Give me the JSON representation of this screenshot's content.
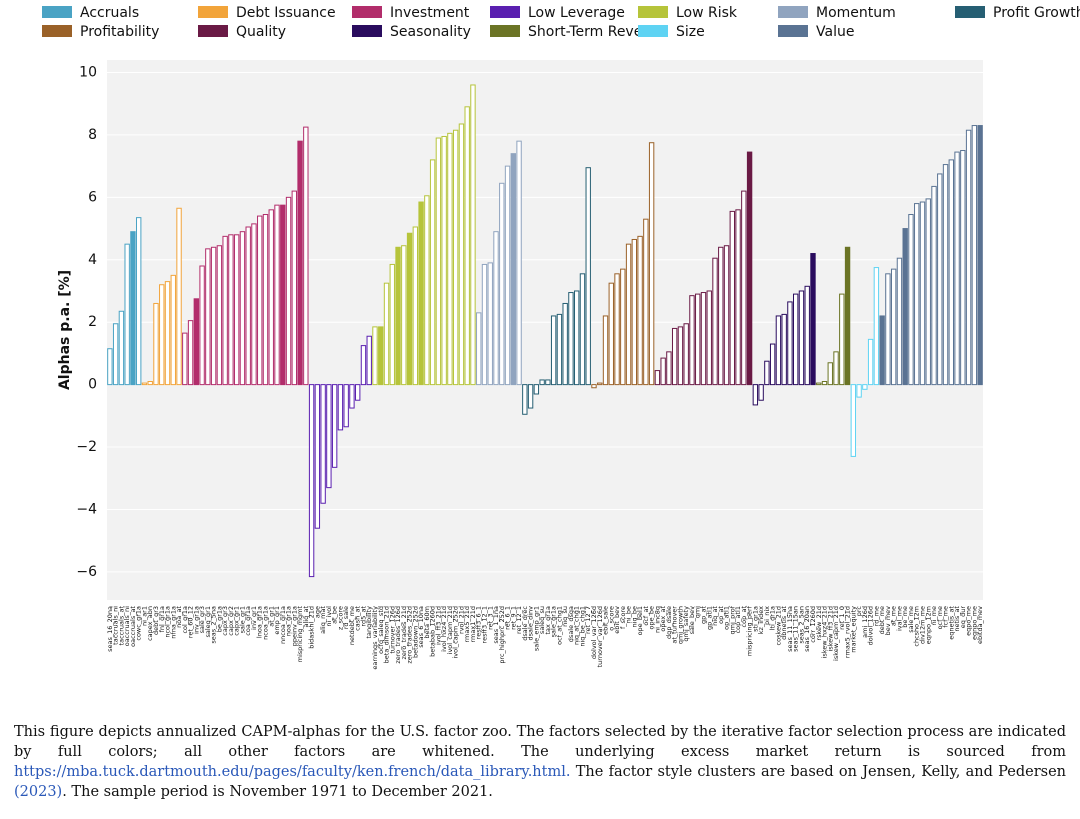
{
  "chart_data": {
    "type": "bar",
    "ylabel": "Alphas p.a. [%]",
    "ylim": [
      -6.9,
      10.4
    ],
    "yticks": [
      {
        "value": -6,
        "label": "−6"
      },
      {
        "value": -4,
        "label": "−4"
      },
      {
        "value": -2,
        "label": "−2"
      },
      0,
      2,
      4,
      6,
      8,
      10
    ],
    "grid": true,
    "legend": "top",
    "series": [
      {
        "name": "Accruals",
        "color": "#4aa3c4",
        "categories": [
          "seas_16_20na",
          "taccruals_ni",
          "taccruals_at",
          "oaccruals_ni",
          "oaccruals_at",
          "cowc_gr1a"
        ],
        "values": [
          1.15,
          1.95,
          2.35,
          4.5,
          4.9,
          5.35
        ],
        "selected": [
          false,
          false,
          false,
          false,
          true,
          false
        ]
      },
      {
        "name": "Debt Issuance",
        "color": "#f2a43a",
        "categories": [
          "ni_ar1",
          "capex_abn",
          "debt_gr3",
          "fnl_gr1a",
          "ncol_gr1a",
          "nfna_gr1a",
          "noa_at"
        ],
        "values": [
          0.05,
          0.1,
          2.6,
          3.2,
          3.3,
          3.5,
          5.65
        ],
        "selected": [
          false,
          false,
          false,
          false,
          false,
          false,
          false
        ]
      },
      {
        "name": "Investment",
        "color": "#b22d6b",
        "categories": [
          "col_gr1a",
          "ret_60_12",
          "inv_gr1a",
          "sale_gr3",
          "saleq_gr1",
          "seas_2_5na",
          "be_gr1a",
          "capx_gr3",
          "capx_gr2",
          "capx_gr1",
          "sale_gr1",
          "coa_gr1a",
          "inv_gr1",
          "lnoa_gr1a",
          "ncoa_gr1a",
          "at_gr1",
          "emp_gr1",
          "nncoa_gr1a",
          "noa_gr1a",
          "ppeinv_gr1a",
          "mispricing_mgmt",
          "aliq_at"
        ],
        "values": [
          1.65,
          2.05,
          2.75,
          3.8,
          4.35,
          4.4,
          4.45,
          4.75,
          4.8,
          4.8,
          4.9,
          5.05,
          5.15,
          5.4,
          5.45,
          5.6,
          5.75,
          5.75,
          6.0,
          6.2,
          7.8,
          8.25
        ],
        "selected": [
          false,
          false,
          true,
          false,
          false,
          false,
          false,
          false,
          false,
          false,
          false,
          false,
          false,
          false,
          false,
          false,
          false,
          true,
          false,
          false,
          true,
          false
        ]
      },
      {
        "name": "Low Leverage",
        "color": "#5a1fb0",
        "categories": [
          "bidaskhl_21d",
          "age",
          "aliq_mat",
          "ni_ivol",
          "at_be",
          "z_score",
          "rd_sale",
          "netdebt_me",
          "cash_at",
          "rd5_at",
          "tangibility"
        ],
        "values": [
          -6.15,
          -4.6,
          -3.8,
          -3.3,
          -2.65,
          -1.45,
          -1.35,
          -0.75,
          -0.5,
          1.25,
          1.55
        ],
        "selected": [
          false,
          false,
          false,
          false,
          false,
          false,
          false,
          false,
          false,
          false,
          false
        ]
      },
      {
        "name": "Low Risk",
        "color": "#b6c43a",
        "categories": [
          "earnings_variability",
          "ocfq_saleq_std",
          "beta_dimson_21d",
          "turnover_126d",
          "zero_trades_126d",
          "zero_trades_21d",
          "zero_trades_252d",
          "betadown_252d",
          "seas_6_10na",
          "beta_60m",
          "betabab_1260d",
          "ivol_ff3_21d",
          "ivol_hxz4_21d",
          "ivol_capm_21d",
          "ivol_capm_252d",
          "rvol_21d",
          "rmax5_21d",
          "rmax1_21d"
        ],
        "values": [
          1.85,
          1.85,
          3.25,
          3.85,
          4.4,
          4.45,
          4.85,
          5.05,
          5.85,
          6.05,
          7.2,
          7.9,
          7.95,
          8.05,
          8.15,
          8.35,
          8.9,
          9.6
        ],
        "selected": [
          false,
          true,
          false,
          false,
          true,
          false,
          true,
          false,
          true,
          false,
          false,
          false,
          false,
          false,
          false,
          false,
          false,
          false
        ]
      },
      {
        "name": "Momentum",
        "color": "#90a4bf",
        "categories": [
          "resff3_6_1",
          "resff3_12_1",
          "ret_3_1",
          "seas_1_1na",
          "prc_highprc_252d",
          "ret_6_1",
          "ret_9_1",
          "ret_12_1"
        ],
        "values": [
          2.3,
          3.85,
          3.9,
          4.9,
          6.45,
          7.0,
          7.4,
          7.8
        ],
        "selected": [
          false,
          false,
          false,
          false,
          false,
          false,
          true,
          false
        ]
      },
      {
        "name": "Profit Growth",
        "color": "#265f73",
        "categories": [
          "dsale_drec",
          "dsale_dinv",
          "sale_emp_gr1",
          "saleq_su",
          "tax_gr1a",
          "sale_gr1a",
          "ocf_at_chg1",
          "niq_su",
          "dsale_dsga",
          "niq_at_chg1",
          "niq_be_chg1",
          "ret_12_7"
        ],
        "values": [
          -0.95,
          -0.75,
          -0.3,
          0.15,
          0.15,
          2.2,
          2.25,
          2.6,
          2.95,
          3.0,
          3.55,
          6.95
        ],
        "selected": [
          false,
          false,
          false,
          false,
          false,
          false,
          false,
          false,
          false,
          false,
          false,
          false
        ]
      },
      {
        "name": "Profitability",
        "color": "#9a6128",
        "categories": [
          "dolvol_var_126d",
          "turnover_var_126d",
          "ebit_sale",
          "o_score",
          "ebit_bev",
          "f_score",
          "ni_be",
          "niq_be",
          "ope_bel1",
          "ocf_at",
          "ope_be"
        ],
        "values": [
          -0.1,
          0.05,
          2.2,
          3.25,
          3.55,
          3.7,
          4.5,
          4.65,
          4.75,
          5.3,
          7.75
        ],
        "selected": [
          false,
          false,
          false,
          false,
          false,
          false,
          false,
          false,
          false,
          false,
          false
        ]
      },
      {
        "name": "Quality",
        "color": "#6a1a45",
        "categories": [
          "ni_inc8q",
          "opex_at",
          "dgp_dsale",
          "at_turnover",
          "qmj_growth",
          "qmj_safety",
          "sale_bev",
          "qmj",
          "gp_at",
          "gp_atl1",
          "niq_at",
          "op_at",
          "op_atl1",
          "qmj_prof",
          "cop_atl1",
          "cop_at",
          "mispricing_perf"
        ],
        "values": [
          0.45,
          0.85,
          1.05,
          1.8,
          1.85,
          1.95,
          2.85,
          2.9,
          2.95,
          3.0,
          4.05,
          4.4,
          4.45,
          5.55,
          5.6,
          6.2,
          7.45
        ],
        "selected": [
          false,
          false,
          false,
          false,
          false,
          false,
          false,
          false,
          false,
          false,
          false,
          false,
          false,
          false,
          false,
          false,
          true
        ]
      },
      {
        "name": "Seasonality",
        "color": "#2a0c5e",
        "categories": [
          "sti_gr1a",
          "kz_index",
          "pi_nix",
          "lti_gr1a",
          "coskew_21d",
          "dbnetis_at",
          "seas_11_15na",
          "seas_11_15an",
          "seas_2_5an",
          "seas_16_20an",
          "corr_1260d"
        ],
        "values": [
          -0.65,
          -0.5,
          0.75,
          1.3,
          2.2,
          2.25,
          2.65,
          2.9,
          3.0,
          3.15,
          4.2
        ],
        "selected": [
          false,
          false,
          false,
          false,
          false,
          false,
          false,
          false,
          false,
          false,
          true
        ]
      },
      {
        "name": "Short-Term Reversal",
        "color": "#6b7425",
        "categories": [
          "rskew_21d",
          "iskew_hxz4_21d",
          "iskew_ff3_21d",
          "iskew_capm_21d",
          "ret_1_0",
          "rmax5_rvol_21d"
        ],
        "values": [
          0.05,
          0.1,
          0.7,
          1.05,
          2.9,
          4.4
        ],
        "selected": [
          false,
          false,
          false,
          false,
          false,
          true
        ]
      },
      {
        "name": "Size",
        "color": "#5ed3f3",
        "categories": [
          "market_equity",
          "prc",
          "ami_126d",
          "dolvol_126d",
          "rd_me"
        ],
        "values": [
          -2.3,
          -0.4,
          -0.15,
          1.45,
          3.75
        ],
        "selected": [
          false,
          false,
          false,
          false,
          false
        ]
      },
      {
        "name": "Value",
        "color": "#5a7393",
        "categories": [
          "debt_me",
          "bev_mev",
          "at_me",
          "ival_me",
          "be_me",
          "sale_me",
          "chcsho_12m",
          "div12m_me",
          "eqnpo_12m",
          "ni_me",
          "ocf_me",
          "fcf_me",
          "eqnetis_at",
          "netis_at",
          "eq_dur",
          "eqpo_me",
          "eqnpo_me",
          "ebitda_mev"
        ],
        "values": [
          2.2,
          3.55,
          3.7,
          4.05,
          5.0,
          5.45,
          5.8,
          5.85,
          5.95,
          6.35,
          6.75,
          7.05,
          7.2,
          7.45,
          7.5,
          8.15,
          8.3,
          8.3
        ],
        "selected": [
          true,
          false,
          false,
          false,
          true,
          false,
          false,
          false,
          false,
          false,
          false,
          false,
          false,
          false,
          false,
          false,
          false,
          true
        ]
      }
    ]
  },
  "caption": {
    "text1": "This figure depicts annualized CAPM-alphas for the U.S. factor zoo. The factors selected by the iterative factor selection process are indicated by full colors; all other factors are whitened. The underlying excess market return is sourced from",
    "link": "https://mba.tuck.dartmouth.edu/pages/faculty/ken.french/data_library.html.",
    "text2": "The factor style clusters are based on Jensen, Kelly, and Pedersen",
    "year": "(2023)",
    "text3": ". The sample period is November 1971 to December 2021."
  }
}
